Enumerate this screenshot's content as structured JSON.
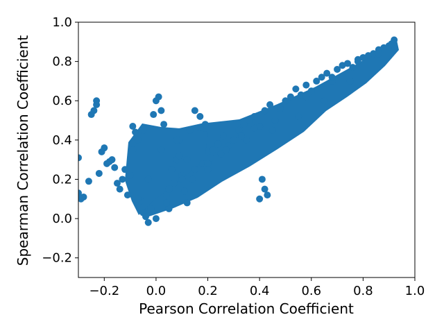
{
  "chart_data": {
    "type": "scatter",
    "title": "",
    "xlabel": "Pearson Correlation Coefficient",
    "ylabel": "Spearman Correlation Coefficient",
    "xlim": [
      -0.3,
      1.0
    ],
    "ylim": [
      -0.3,
      1.0
    ],
    "xticks": [
      -0.2,
      0.0,
      0.2,
      0.4,
      0.6,
      0.8,
      1.0
    ],
    "xtick_labels": [
      "−0.2",
      "0.0",
      "0.2",
      "0.4",
      "0.6",
      "0.8",
      "1.0"
    ],
    "yticks": [
      -0.2,
      0.0,
      0.2,
      0.4,
      0.6,
      0.8,
      1.0
    ],
    "ytick_labels": [
      "−0.2",
      "0.0",
      "0.2",
      "0.4",
      "0.6",
      "0.8",
      "1.0"
    ],
    "grid": false,
    "legend": "none",
    "marker_color": "#1f77b4",
    "series": [
      {
        "x": [
          -0.3,
          -0.3,
          -0.29,
          -0.28,
          -0.26,
          -0.25,
          -0.24,
          -0.23,
          -0.23,
          -0.22,
          -0.21,
          -0.2,
          -0.19,
          -0.18,
          -0.17,
          -0.16,
          -0.15,
          -0.14,
          -0.13,
          -0.12,
          -0.11,
          -0.1,
          -0.09,
          -0.08,
          -0.07,
          -0.06,
          -0.05,
          -0.04,
          -0.03,
          -0.02,
          -0.01,
          0.0,
          0.01,
          0.02,
          0.03,
          0.04,
          0.05,
          0.06,
          0.07,
          0.08,
          0.09,
          0.1,
          0.11,
          0.12,
          0.13,
          0.15,
          0.17,
          0.19,
          0.2,
          0.21,
          0.22,
          0.24,
          0.26,
          0.28,
          0.3,
          0.32,
          0.34,
          0.36,
          0.38,
          0.4,
          0.42,
          0.44,
          0.46,
          0.48,
          0.5,
          0.52,
          0.54,
          0.56,
          0.58,
          0.6,
          0.62,
          0.64,
          0.66,
          0.68,
          0.7,
          0.72,
          0.74,
          0.76,
          0.78,
          0.8,
          0.82,
          0.84,
          0.86,
          0.88,
          0.9,
          0.91,
          0.92,
          0.05,
          0.1,
          0.15,
          0.02,
          0.08,
          0.12,
          0.18,
          0.25,
          0.35,
          0.45,
          0.55,
          0.65,
          0.75,
          0.4,
          0.42,
          0.43,
          0.41,
          -0.05,
          -0.03,
          -0.09,
          -0.07,
          0.0,
          0.04,
          0.09,
          0.14,
          0.2,
          0.27,
          0.33,
          0.38,
          0.48,
          0.58,
          0.68,
          0.78,
          0.86
        ],
        "y": [
          0.31,
          0.13,
          0.1,
          0.11,
          0.19,
          0.53,
          0.55,
          0.58,
          0.6,
          0.23,
          0.34,
          0.36,
          0.28,
          0.29,
          0.3,
          0.26,
          0.18,
          0.15,
          0.2,
          0.25,
          0.12,
          0.22,
          0.47,
          0.44,
          0.4,
          0.09,
          0.03,
          0.01,
          -0.02,
          0.05,
          0.53,
          0.6,
          0.62,
          0.55,
          0.48,
          0.12,
          0.05,
          0.25,
          0.18,
          0.3,
          0.4,
          0.22,
          0.14,
          0.08,
          0.45,
          0.55,
          0.52,
          0.48,
          0.25,
          0.31,
          0.35,
          0.38,
          0.42,
          0.37,
          0.4,
          0.45,
          0.48,
          0.5,
          0.52,
          0.47,
          0.55,
          0.58,
          0.5,
          0.57,
          0.6,
          0.62,
          0.66,
          0.63,
          0.68,
          0.65,
          0.7,
          0.72,
          0.74,
          0.7,
          0.76,
          0.78,
          0.79,
          0.77,
          0.81,
          0.82,
          0.83,
          0.84,
          0.86,
          0.87,
          0.88,
          0.89,
          0.91,
          0.15,
          0.2,
          0.25,
          0.35,
          0.4,
          0.3,
          0.28,
          0.33,
          0.4,
          0.45,
          0.52,
          0.6,
          0.7,
          0.1,
          0.15,
          0.12,
          0.2,
          0.45,
          0.2,
          0.35,
          0.1,
          0.0,
          0.08,
          0.32,
          0.2,
          0.28,
          0.35,
          0.42,
          0.46,
          0.56,
          0.62,
          0.72,
          0.8,
          0.84
        ]
      }
    ]
  }
}
